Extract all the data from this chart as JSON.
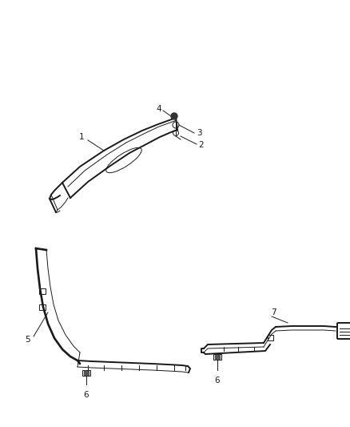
{
  "background_color": "#ffffff",
  "fig_width": 4.38,
  "fig_height": 5.33,
  "dpi": 100,
  "line_color": "#1a1a1a",
  "text_color": "#1a1a1a",
  "font_size": 7.5
}
